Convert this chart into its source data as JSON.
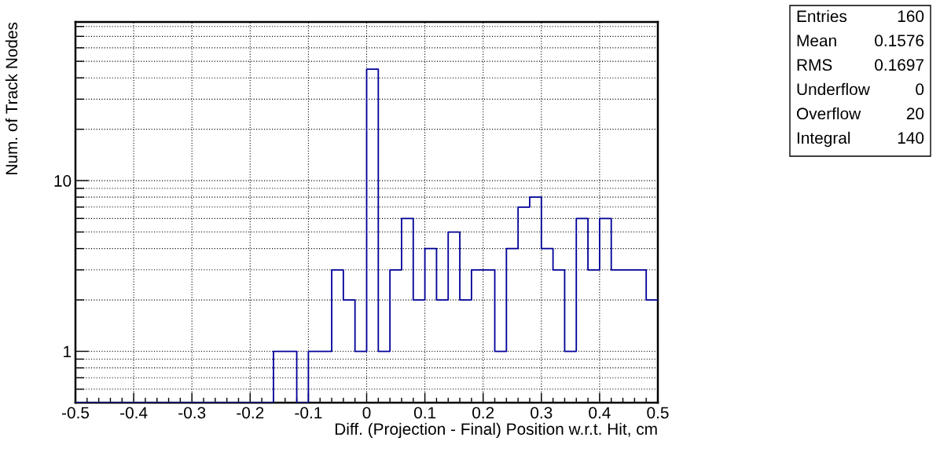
{
  "chart_data": {
    "type": "histogram",
    "xlabel": "Diff. (Projection - Final) Position w.r.t. Hit, cm",
    "ylabel": "Num. of Track Nodes",
    "bins": [
      -0.5,
      -0.48,
      -0.46,
      -0.44,
      -0.42,
      -0.4,
      -0.38,
      -0.36,
      -0.34,
      -0.32,
      -0.3,
      -0.28,
      -0.26,
      -0.24,
      -0.22,
      -0.2,
      -0.18,
      -0.16,
      -0.14,
      -0.12,
      -0.1,
      -0.08,
      -0.06,
      -0.04,
      -0.02,
      0,
      0.02,
      0.04,
      0.06,
      0.08,
      0.1,
      0.12,
      0.14,
      0.16,
      0.18,
      0.2,
      0.22,
      0.24,
      0.26,
      0.28,
      0.3,
      0.32,
      0.34,
      0.36,
      0.38,
      0.4,
      0.42,
      0.44,
      0.46,
      0.48,
      0.5
    ],
    "values": [
      null,
      null,
      null,
      null,
      null,
      null,
      null,
      null,
      null,
      null,
      null,
      null,
      null,
      null,
      null,
      null,
      null,
      1,
      1,
      null,
      1,
      1,
      3,
      2,
      1,
      45,
      1,
      3,
      6,
      2,
      4,
      2,
      5,
      2,
      3,
      3,
      1,
      4,
      7,
      8,
      4,
      3,
      1,
      6,
      3,
      6,
      3,
      3,
      3,
      2
    ],
    "color": "#000099",
    "log": "y",
    "grid": true,
    "xlim": [
      -0.5,
      0.5
    ],
    "xticks": [
      -0.5,
      {
        "value": -0.48,
        "label": null
      },
      {
        "value": -0.46,
        "label": null
      },
      {
        "value": -0.44,
        "label": null
      },
      {
        "value": -0.42,
        "label": null
      },
      -0.4,
      {
        "value": -0.38,
        "label": null
      },
      {
        "value": -0.36,
        "label": null
      },
      {
        "value": -0.34,
        "label": null
      },
      {
        "value": -0.32,
        "label": null
      },
      -0.3,
      {
        "value": -0.28,
        "label": null
      },
      {
        "value": -0.26,
        "label": null
      },
      {
        "value": -0.24,
        "label": null
      },
      {
        "value": -0.22,
        "label": null
      },
      -0.2,
      {
        "value": -0.18,
        "label": null
      },
      {
        "value": -0.16,
        "label": null
      },
      {
        "value": -0.14,
        "label": null
      },
      {
        "value": -0.12,
        "label": null
      },
      -0.1,
      {
        "value": -0.08,
        "label": null
      },
      {
        "value": -0.06,
        "label": null
      },
      {
        "value": -0.04,
        "label": null
      },
      {
        "value": -0.02,
        "label": null
      },
      0,
      {
        "value": 0.02,
        "label": null
      },
      {
        "value": 0.04,
        "label": null
      },
      {
        "value": 0.06,
        "label": null
      },
      {
        "value": 0.08,
        "label": null
      },
      0.1,
      {
        "value": 0.12,
        "label": null
      },
      {
        "value": 0.14,
        "label": null
      },
      {
        "value": 0.16,
        "label": null
      },
      {
        "value": 0.18,
        "label": null
      },
      0.2,
      {
        "value": 0.22,
        "label": null
      },
      {
        "value": 0.24,
        "label": null
      },
      {
        "value": 0.26,
        "label": null
      },
      {
        "value": 0.28,
        "label": null
      },
      0.3,
      {
        "value": 0.32,
        "label": null
      },
      {
        "value": 0.34,
        "label": null
      },
      {
        "value": 0.36,
        "label": null
      },
      {
        "value": 0.38,
        "label": null
      },
      0.4,
      {
        "value": 0.42,
        "label": null
      },
      {
        "value": 0.44,
        "label": null
      },
      {
        "value": 0.46,
        "label": null
      },
      {
        "value": 0.48,
        "label": null
      },
      0.5
    ],
    "ylim": [
      0.5,
      85
    ],
    "yticks": [
      {
        "value": 0.6,
        "label": null
      },
      {
        "value": 0.7,
        "label": null
      },
      {
        "value": 0.8,
        "label": null
      },
      {
        "value": 0.9,
        "label": null
      },
      1,
      {
        "value": 2,
        "label": null
      },
      {
        "value": 3,
        "label": null
      },
      {
        "value": 4,
        "label": null
      },
      {
        "value": 5,
        "label": null
      },
      {
        "value": 6,
        "label": null
      },
      {
        "value": 7,
        "label": null
      },
      {
        "value": 8,
        "label": null
      },
      {
        "value": 9,
        "label": null
      },
      10,
      {
        "value": 20,
        "label": null
      },
      {
        "value": 30,
        "label": null
      },
      {
        "value": 40,
        "label": null
      },
      {
        "value": 50,
        "label": null
      },
      {
        "value": 60,
        "label": null
      },
      {
        "value": 70,
        "label": null
      },
      {
        "value": 80,
        "label": null
      }
    ],
    "annotations": [
      "Entries 160",
      "Mean 0.1576",
      "RMS 0.1697",
      "Underflow 0",
      "Overflow 20",
      "Integral 140"
    ]
  }
}
